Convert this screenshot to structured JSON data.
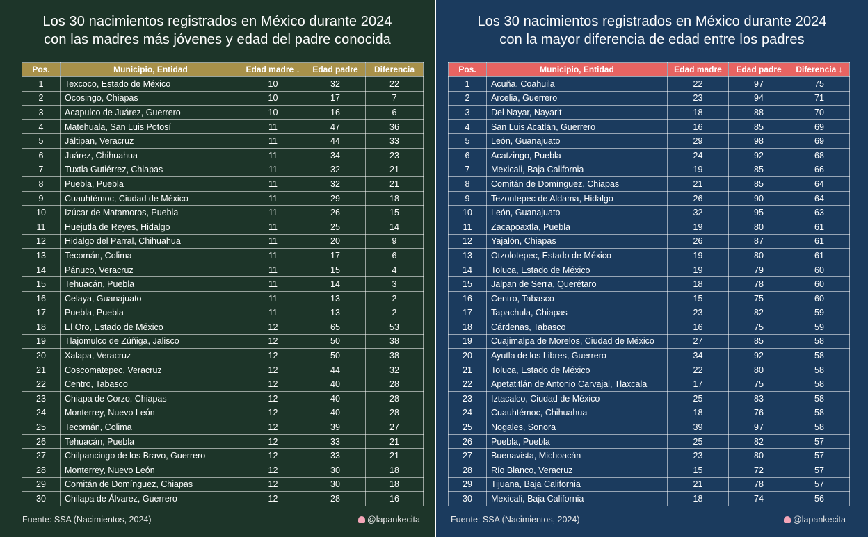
{
  "left": {
    "title_line1": "Los 30 nacimientos registrados en México durante 2024",
    "title_line2": "con las madres más jóvenes y edad del padre conocida",
    "columns": [
      "Pos.",
      "Municipio, Entidad",
      "Edad madre ↓",
      "Edad padre",
      "Diferencia"
    ],
    "rows": [
      [
        "1",
        "Texcoco, Estado de México",
        "10",
        "32",
        "22"
      ],
      [
        "2",
        "Ocosingo, Chiapas",
        "10",
        "17",
        "7"
      ],
      [
        "3",
        "Acapulco de Juárez, Guerrero",
        "10",
        "16",
        "6"
      ],
      [
        "4",
        "Matehuala, San Luis Potosí",
        "11",
        "47",
        "36"
      ],
      [
        "5",
        "Jáltipan, Veracruz",
        "11",
        "44",
        "33"
      ],
      [
        "6",
        "Juárez, Chihuahua",
        "11",
        "34",
        "23"
      ],
      [
        "7",
        "Tuxtla Gutiérrez, Chiapas",
        "11",
        "32",
        "21"
      ],
      [
        "8",
        "Puebla, Puebla",
        "11",
        "32",
        "21"
      ],
      [
        "9",
        "Cuauhtémoc, Ciudad de México",
        "11",
        "29",
        "18"
      ],
      [
        "10",
        "Izúcar de Matamoros, Puebla",
        "11",
        "26",
        "15"
      ],
      [
        "11",
        "Huejutla de Reyes, Hidalgo",
        "11",
        "25",
        "14"
      ],
      [
        "12",
        "Hidalgo del Parral, Chihuahua",
        "11",
        "20",
        "9"
      ],
      [
        "13",
        "Tecomán, Colima",
        "11",
        "17",
        "6"
      ],
      [
        "14",
        "Pánuco, Veracruz",
        "11",
        "15",
        "4"
      ],
      [
        "15",
        "Tehuacán, Puebla",
        "11",
        "14",
        "3"
      ],
      [
        "16",
        "Celaya, Guanajuato",
        "11",
        "13",
        "2"
      ],
      [
        "17",
        "Puebla, Puebla",
        "11",
        "13",
        "2"
      ],
      [
        "18",
        "El Oro, Estado de México",
        "12",
        "65",
        "53"
      ],
      [
        "19",
        "Tlajomulco de Zúñiga, Jalisco",
        "12",
        "50",
        "38"
      ],
      [
        "20",
        "Xalapa, Veracruz",
        "12",
        "50",
        "38"
      ],
      [
        "21",
        "Coscomatepec, Veracruz",
        "12",
        "44",
        "32"
      ],
      [
        "22",
        "Centro, Tabasco",
        "12",
        "40",
        "28"
      ],
      [
        "23",
        "Chiapa de Corzo, Chiapas",
        "12",
        "40",
        "28"
      ],
      [
        "24",
        "Monterrey, Nuevo León",
        "12",
        "40",
        "28"
      ],
      [
        "25",
        "Tecomán, Colima",
        "12",
        "39",
        "27"
      ],
      [
        "26",
        "Tehuacán, Puebla",
        "12",
        "33",
        "21"
      ],
      [
        "27",
        "Chilpancingo de los Bravo, Guerrero",
        "12",
        "33",
        "21"
      ],
      [
        "28",
        "Monterrey, Nuevo León",
        "12",
        "30",
        "18"
      ],
      [
        "29",
        "Comitán de Domínguez, Chiapas",
        "12",
        "30",
        "18"
      ],
      [
        "30",
        "Chilapa de Álvarez, Guerrero",
        "12",
        "28",
        "16"
      ]
    ],
    "source": "Fuente: SSA (Nacimientos, 2024)",
    "handle": "@lapankecita",
    "header_color": "#a8914a"
  },
  "right": {
    "title_line1": "Los 30 nacimientos registrados en México durante 2024",
    "title_line2": "con la mayor diferencia de edad entre los padres",
    "columns": [
      "Pos.",
      "Municipio, Entidad",
      "Edad madre",
      "Edad padre",
      "Diferencia ↓"
    ],
    "rows": [
      [
        "1",
        "Acuña, Coahuila",
        "22",
        "97",
        "75"
      ],
      [
        "2",
        "Arcelia, Guerrero",
        "23",
        "94",
        "71"
      ],
      [
        "3",
        "Del Nayar, Nayarit",
        "18",
        "88",
        "70"
      ],
      [
        "4",
        "San Luis Acatlán, Guerrero",
        "16",
        "85",
        "69"
      ],
      [
        "5",
        "León, Guanajuato",
        "29",
        "98",
        "69"
      ],
      [
        "6",
        "Acatzingo, Puebla",
        "24",
        "92",
        "68"
      ],
      [
        "7",
        "Mexicali, Baja California",
        "19",
        "85",
        "66"
      ],
      [
        "8",
        "Comitán de Domínguez, Chiapas",
        "21",
        "85",
        "64"
      ],
      [
        "9",
        "Tezontepec de Aldama, Hidalgo",
        "26",
        "90",
        "64"
      ],
      [
        "10",
        "León, Guanajuato",
        "32",
        "95",
        "63"
      ],
      [
        "11",
        "Zacapoaxtla, Puebla",
        "19",
        "80",
        "61"
      ],
      [
        "12",
        "Yajalón, Chiapas",
        "26",
        "87",
        "61"
      ],
      [
        "13",
        "Otzolotepec, Estado de México",
        "19",
        "80",
        "61"
      ],
      [
        "14",
        "Toluca, Estado de México",
        "19",
        "79",
        "60"
      ],
      [
        "15",
        "Jalpan de Serra, Querétaro",
        "18",
        "78",
        "60"
      ],
      [
        "16",
        "Centro, Tabasco",
        "15",
        "75",
        "60"
      ],
      [
        "17",
        "Tapachula, Chiapas",
        "23",
        "82",
        "59"
      ],
      [
        "18",
        "Cárdenas, Tabasco",
        "16",
        "75",
        "59"
      ],
      [
        "19",
        "Cuajimalpa de Morelos, Ciudad de México",
        "27",
        "85",
        "58"
      ],
      [
        "20",
        "Ayutla de los Libres, Guerrero",
        "34",
        "92",
        "58"
      ],
      [
        "21",
        "Toluca, Estado de México",
        "22",
        "80",
        "58"
      ],
      [
        "22",
        "Apetatitlán de Antonio Carvajal, Tlaxcala",
        "17",
        "75",
        "58"
      ],
      [
        "23",
        "Iztacalco, Ciudad de México",
        "25",
        "83",
        "58"
      ],
      [
        "24",
        "Cuauhtémoc, Chihuahua",
        "18",
        "76",
        "58"
      ],
      [
        "25",
        "Nogales, Sonora",
        "39",
        "97",
        "58"
      ],
      [
        "26",
        "Puebla, Puebla",
        "25",
        "82",
        "57"
      ],
      [
        "27",
        "Buenavista, Michoacán",
        "23",
        "80",
        "57"
      ],
      [
        "28",
        "Río Blanco, Veracruz",
        "15",
        "72",
        "57"
      ],
      [
        "29",
        "Tijuana, Baja California",
        "21",
        "78",
        "57"
      ],
      [
        "30",
        "Mexicali, Baja California",
        "18",
        "74",
        "56"
      ]
    ],
    "source": "Fuente: SSA (Nacimientos, 2024)",
    "handle": "@lapankecita",
    "header_color": "#e76462"
  }
}
